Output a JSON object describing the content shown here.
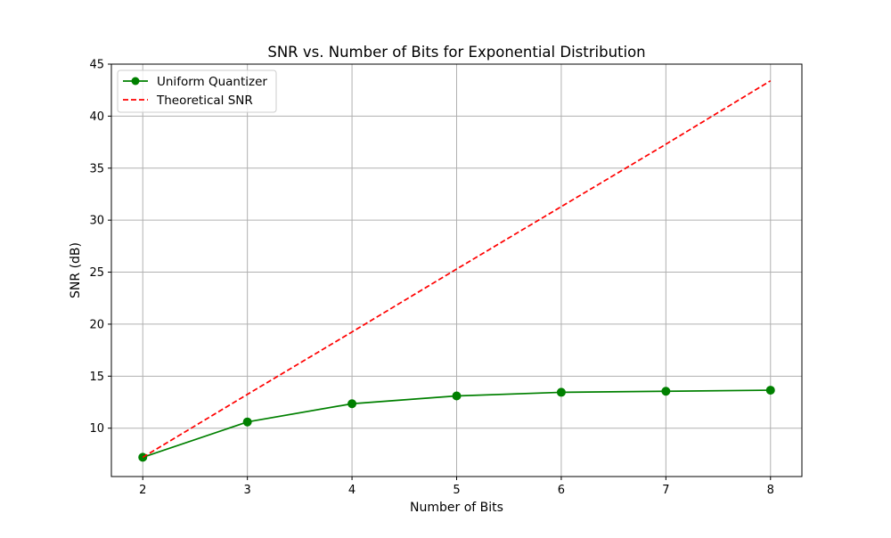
{
  "chart_data": {
    "type": "line",
    "title": "SNR vs. Number of Bits for Exponential Distribution",
    "xlabel": "Number of Bits",
    "ylabel": "SNR (dB)",
    "x": [
      2,
      3,
      4,
      5,
      6,
      7,
      8
    ],
    "xlim": [
      1.7,
      8.3
    ],
    "ylim": [
      5.35,
      45
    ],
    "xticks": [
      2,
      3,
      4,
      5,
      6,
      7,
      8
    ],
    "yticks": [
      10,
      15,
      20,
      25,
      30,
      35,
      40,
      45
    ],
    "grid": true,
    "legend_position": "top-left",
    "series": [
      {
        "name": "Uniform Quantizer",
        "values": [
          7.2,
          10.6,
          12.35,
          13.1,
          13.45,
          13.55,
          13.65
        ],
        "color": "#008000",
        "style": "solid",
        "marker": "circle"
      },
      {
        "name": "Theoretical SNR",
        "values": [
          7.2,
          13.25,
          19.25,
          25.3,
          31.3,
          37.3,
          43.4
        ],
        "color": "#ff0000",
        "style": "dashed",
        "marker": "none"
      }
    ]
  }
}
